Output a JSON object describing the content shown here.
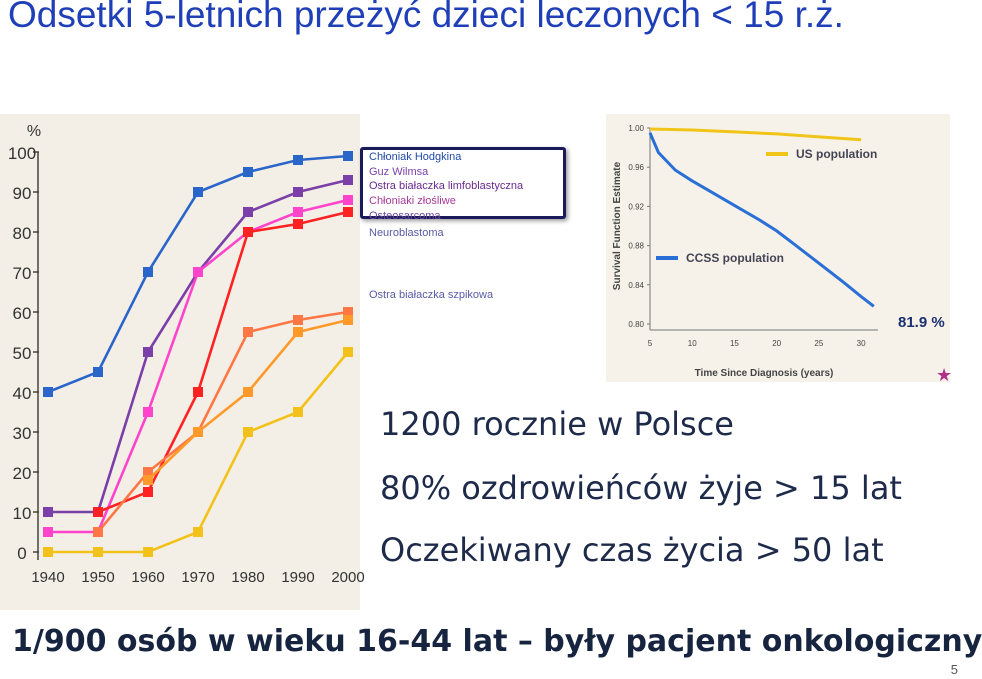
{
  "slide": {
    "title": "Odsetki 5-letnich przeżyć dzieci leczonych < 15 r.ż.",
    "stats": [
      "1200 rocznie w Polsce",
      "80% ozdrowieńców żyje > 15 lat",
      "Oczekiwany czas życia > 50 lat"
    ],
    "footer": "1/900 osób w wieku 16-44 lat – były pacjent onkologiczny",
    "page_number": "5"
  },
  "chart_data": [
    {
      "type": "line",
      "ylabel": "%",
      "x": [
        1940,
        1950,
        1960,
        1970,
        1980,
        1990,
        2000
      ],
      "x_tick_labels": [
        "1940",
        "1950",
        "1960",
        "1970",
        "1980",
        "1990",
        "2000"
      ],
      "y_ticks": [
        0,
        10,
        20,
        30,
        40,
        50,
        60,
        70,
        80,
        90,
        100
      ],
      "ylim": [
        0,
        100
      ],
      "xlim": [
        1937,
        2000
      ],
      "series": [
        {
          "name": "Chłoniak Hodgkina",
          "color": "#2a66c9",
          "values": [
            40,
            45,
            70,
            90,
            95,
            98,
            99
          ]
        },
        {
          "name": "Guz Wilmsa",
          "color": "#7a3fa8",
          "values": [
            10,
            10,
            50,
            70,
            85,
            90,
            93
          ]
        },
        {
          "name": "Ostra białaczka limfoblastyczna",
          "color": "#ff44cc",
          "values": [
            5,
            5,
            35,
            70,
            80,
            85,
            88
          ]
        },
        {
          "name": "Chłoniaki złośliwe",
          "color": "#ff2222",
          "values": [
            null,
            10,
            15,
            40,
            80,
            82,
            85
          ]
        },
        {
          "name": "Osteosarcoma",
          "color": "#ff7744",
          "values": [
            null,
            5,
            20,
            30,
            55,
            58,
            60
          ]
        },
        {
          "name": "Neuroblastoma",
          "color": "#ff9a2a",
          "values": [
            null,
            null,
            18,
            30,
            40,
            55,
            58
          ]
        },
        {
          "name": "Ostra białaczka szpikowa",
          "color": "#f2c21a",
          "values": [
            0,
            0,
            0,
            5,
            30,
            35,
            50
          ]
        }
      ]
    },
    {
      "type": "line",
      "xlabel": "Time Since Diagnosis (years)",
      "ylabel": "Survival Function Estimate",
      "x_ticks": [
        5,
        10,
        15,
        20,
        25,
        30
      ],
      "y_ticks": [
        "0.80",
        "0.84",
        "0.88",
        "0.92",
        "0.96",
        "1.00"
      ],
      "xlim": [
        5,
        32
      ],
      "ylim": [
        0.8,
        1.0
      ],
      "series": [
        {
          "name": "US population",
          "color": "#f0c419",
          "x": [
            5,
            10,
            15,
            20,
            25,
            30
          ],
          "values": [
            0.999,
            0.998,
            0.996,
            0.994,
            0.991,
            0.988
          ]
        },
        {
          "name": "CCSS population",
          "color": "#2a6fd6",
          "x": [
            5,
            6,
            8,
            10,
            12,
            15,
            18,
            20,
            22,
            25,
            28,
            30,
            31.5
          ],
          "values": [
            0.995,
            0.975,
            0.957,
            0.946,
            0.936,
            0.921,
            0.906,
            0.895,
            0.882,
            0.862,
            0.842,
            0.828,
            0.818
          ]
        }
      ],
      "annotation": "81.9 %"
    }
  ]
}
